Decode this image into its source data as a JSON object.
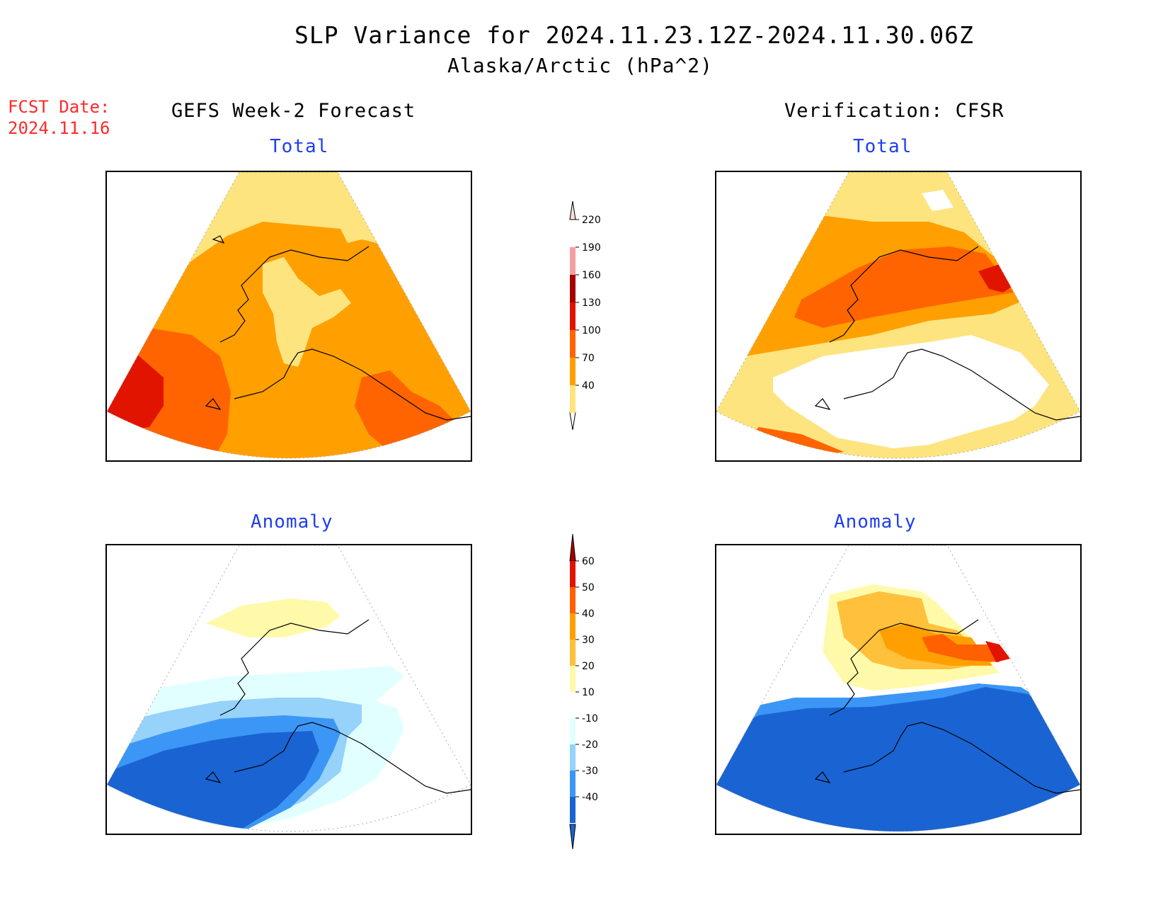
{
  "header": {
    "title": "SLP Variance for 2024.11.23.12Z-2024.11.30.06Z",
    "subtitle": "Alaska/Arctic (hPa^2)"
  },
  "forecast_date": {
    "label": "FCST Date:",
    "value": "2024.11.16"
  },
  "columns": {
    "left": "GEFS Week-2 Forecast",
    "right": "Verification: CFSR"
  },
  "panels": {
    "forecast_total": "Total",
    "verification_total": "Total",
    "forecast_anomaly": "Anomaly",
    "verification_anomaly": "Anomaly"
  },
  "total_scale": {
    "levels": [
      "40",
      "70",
      "100",
      "130",
      "160",
      "190",
      "220"
    ],
    "colors": [
      "#fde47f",
      "#ffa000",
      "#ff6400",
      "#e11400",
      "#a50000",
      "#f4a0a0",
      "#fce0e0"
    ]
  },
  "anomaly_scale": {
    "levels": [
      "-40",
      "-30",
      "-20",
      "-10",
      "10",
      "20",
      "30",
      "40",
      "50",
      "60"
    ],
    "colors": [
      "#1964d2",
      "#3c96f5",
      "#96d2fa",
      "#e1ffff",
      "#ffffff",
      "#fffaaa",
      "#ffc03c",
      "#ffa000",
      "#ff6000",
      "#e11400",
      "#a50000"
    ]
  }
}
